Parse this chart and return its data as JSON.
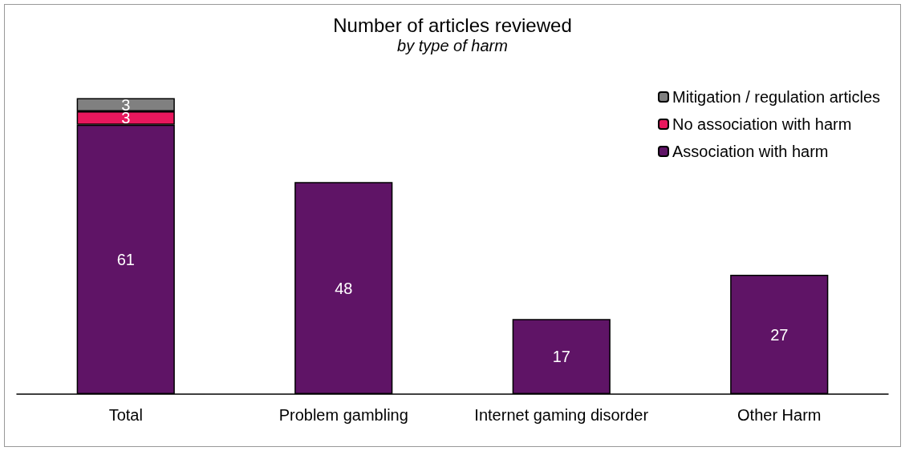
{
  "chart_data": {
    "type": "bar",
    "title": "Number of articles reviewed",
    "subtitle": "by type of harm",
    "categories": [
      "Total",
      "Problem gambling",
      "Internet gaming disorder",
      "Other Harm"
    ],
    "stacked": true,
    "data_labels": true,
    "legend": "top right",
    "series": [
      {
        "name": "Association with harm",
        "color": "#5f1466",
        "values": [
          61,
          48,
          17,
          27
        ]
      },
      {
        "name": "No association with harm",
        "color": "#e8175d",
        "values": [
          3,
          null,
          null,
          null
        ]
      },
      {
        "name": "Mitigation / regulation articles",
        "color": "#808080",
        "values": [
          3,
          null,
          null,
          null
        ]
      }
    ]
  }
}
